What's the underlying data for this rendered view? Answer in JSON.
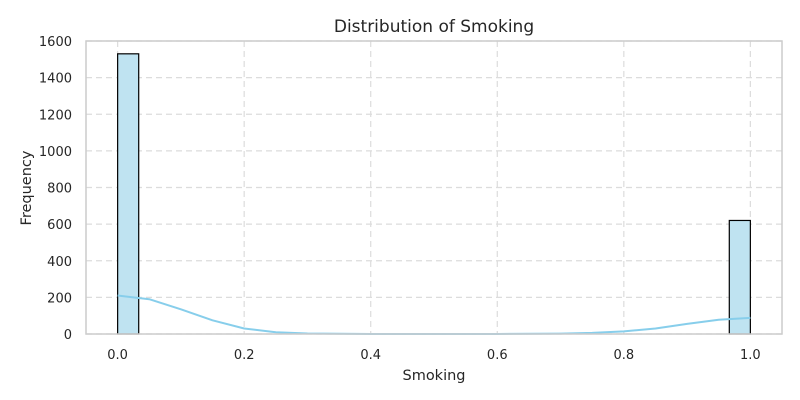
{
  "chart_data": {
    "type": "bar",
    "title": "Distribution of Smoking",
    "xlabel": "Smoking",
    "ylabel": "Frequency",
    "xlim": [
      -0.05,
      1.05
    ],
    "ylim": [
      0,
      1600
    ],
    "xticks": [
      0.0,
      0.2,
      0.4,
      0.6,
      0.8,
      1.0
    ],
    "xtick_labels": [
      "0.0",
      "0.2",
      "0.4",
      "0.6",
      "0.8",
      "1.0"
    ],
    "yticks": [
      0,
      200,
      400,
      600,
      800,
      1000,
      1200,
      1400,
      1600
    ],
    "ytick_labels": [
      "0",
      "200",
      "400",
      "600",
      "800",
      "1000",
      "1200",
      "1400",
      "1600"
    ],
    "grid": true,
    "bins": [
      {
        "x0": 0.0,
        "x1": 0.0333,
        "value": 1530
      },
      {
        "x0": 0.9667,
        "x1": 1.0,
        "value": 620
      }
    ],
    "kde": {
      "x": [
        0.0,
        0.05,
        0.1,
        0.15,
        0.2,
        0.25,
        0.3,
        0.35,
        0.4,
        0.5,
        0.6,
        0.7,
        0.75,
        0.8,
        0.85,
        0.9,
        0.95,
        1.0
      ],
      "y": [
        210,
        190,
        135,
        75,
        30,
        10,
        3,
        1,
        0,
        0,
        0,
        2,
        6,
        14,
        30,
        55,
        78,
        88
      ]
    },
    "colors": {
      "bar_fill": "#bfe3f1",
      "bar_edge": "#000000",
      "kde_line": "#87ceeb",
      "grid": "#dcdcdc",
      "frame": "#cccccc",
      "text": "#262626"
    }
  }
}
